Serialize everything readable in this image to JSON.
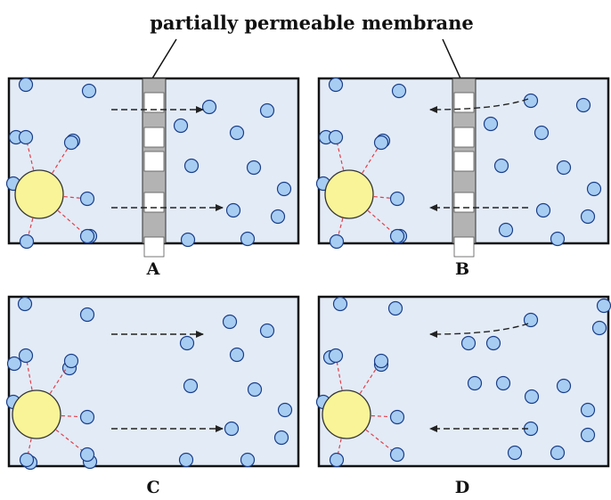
{
  "membrane_label": "partially permeable membrane",
  "panels": [
    {
      "id": "A",
      "label": "A",
      "membrane": true,
      "flow": "right"
    },
    {
      "id": "B",
      "label": "B",
      "membrane": true,
      "flow": "left"
    },
    {
      "id": "C",
      "label": "C",
      "membrane": false,
      "flow": "right"
    },
    {
      "id": "D",
      "label": "D",
      "membrane": false,
      "flow": "left"
    }
  ],
  "colors": {
    "panel_bg": "#e3ebf6",
    "border": "#111111",
    "particle_fill": "#a8cdf2",
    "particle_stroke": "#1a3f8a",
    "solute_fill": "#f8f497",
    "bond": "#e0404a",
    "membrane_grey": "#b3b3b3",
    "pore": "#ffffff",
    "arrow": "#222222"
  }
}
